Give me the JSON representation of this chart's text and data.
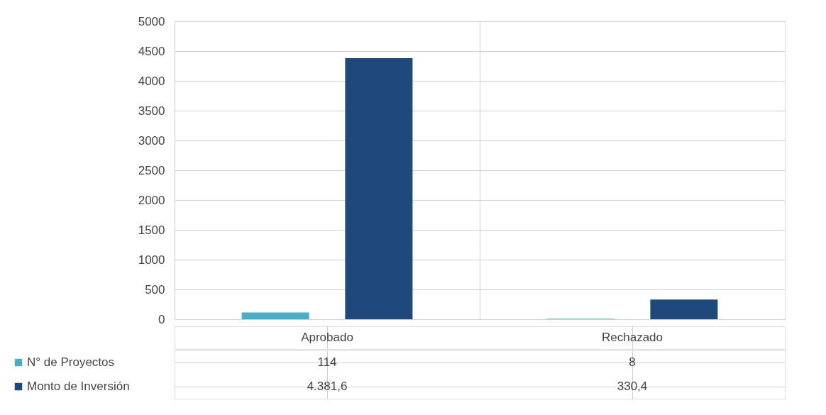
{
  "chart_data": {
    "type": "bar",
    "categories": [
      "Aprobado",
      "Rechazado"
    ],
    "series": [
      {
        "name": "N° de Proyectos",
        "color": "#4bacc6",
        "values": [
          114,
          8
        ],
        "value_labels": [
          "114",
          "8"
        ]
      },
      {
        "name": "Monto de Inversión",
        "color": "#1f497d",
        "values": [
          4381.6,
          330.4
        ],
        "value_labels": [
          "4.381,6",
          "330,4"
        ]
      }
    ],
    "ylim": [
      0,
      5000
    ],
    "yticks": [
      0,
      500,
      1000,
      1500,
      2000,
      2500,
      3000,
      3500,
      4000,
      4500,
      5000
    ],
    "grid": true,
    "legend": "bottom"
  }
}
